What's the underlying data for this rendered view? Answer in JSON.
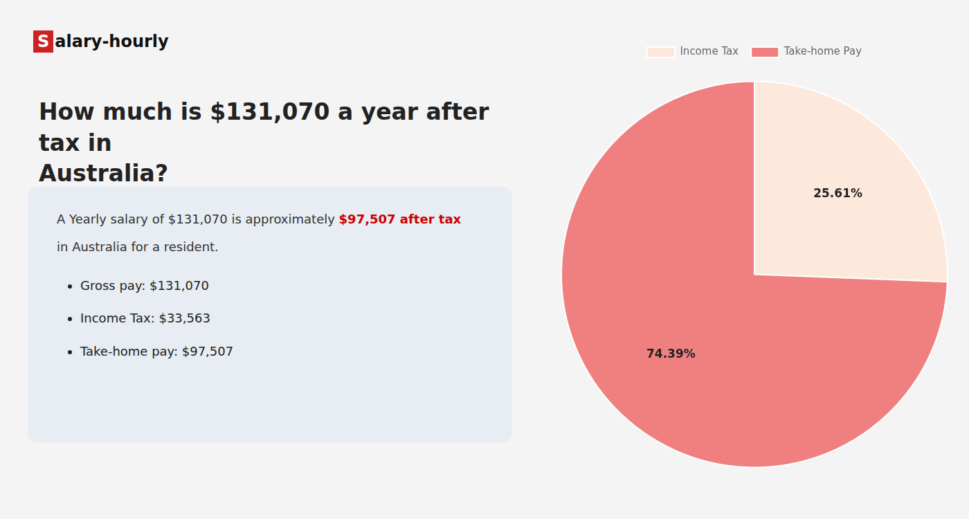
{
  "chart_data": {
    "type": "pie",
    "title": "How much is $131,070 a year after tax in\nAustralia?",
    "categories": [
      "Income Tax",
      "Take-home Pay"
    ],
    "values": [
      25.61,
      74.39
    ],
    "value_labels": [
      "25.61%",
      "74.39%"
    ],
    "colors": [
      "#fde8dc",
      "#f08080"
    ],
    "data_labels": true,
    "legend": "top",
    "annotations": [
      "S",
      "alary-hourly",
      "A Yearly salary of $131,070 is approximately ",
      "$97,507 after tax",
      "in Australia for a resident.",
      "Gross pay: $131,070",
      "Income Tax: $33,563",
      "Take-home pay: $97,507"
    ]
  }
}
